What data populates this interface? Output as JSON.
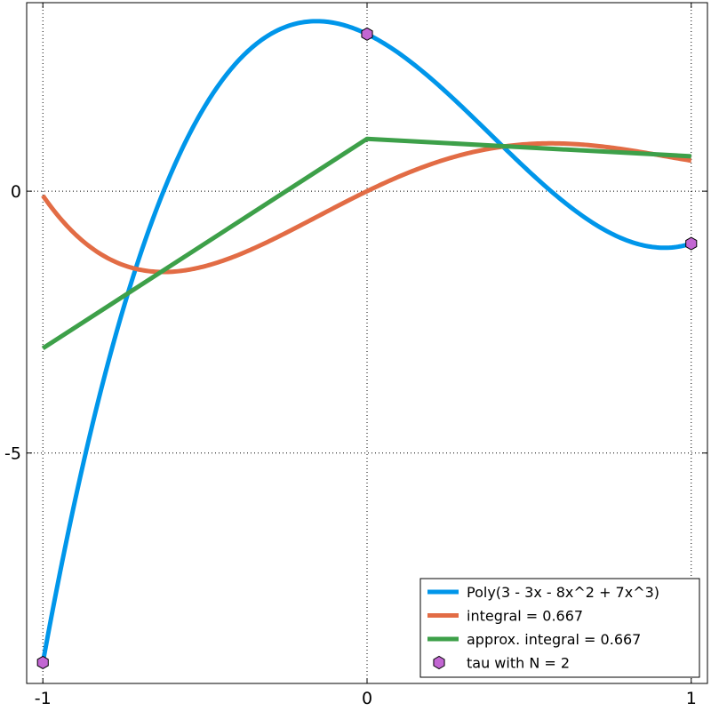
{
  "chart_data": {
    "type": "line",
    "title": "",
    "xlabel": "",
    "ylabel": "",
    "xlim": [
      -1.05,
      1.05
    ],
    "ylim": [
      -9.4,
      3.6
    ],
    "xticks": [
      -1,
      0,
      1
    ],
    "xtick_labels": [
      "-1",
      "0",
      "1"
    ],
    "yticks": [
      0,
      -5
    ],
    "ytick_labels": [
      "0",
      "-5"
    ],
    "grid": true,
    "legend": "bottom-right",
    "series": [
      {
        "name": "Poly(3 - 3x - 8x^2 + 7x^3)",
        "kind": "function",
        "coefficients": [
          3,
          -3,
          -8,
          7
        ],
        "color": "#0096ea"
      },
      {
        "name": "integral = 0.667",
        "kind": "function",
        "coefficients": [
          0,
          3,
          -1.5,
          -2.6667,
          1.75
        ],
        "color": "#e26c45"
      },
      {
        "name": "approx. integral = 0.667",
        "kind": "polyline",
        "x": [
          -1,
          0,
          1
        ],
        "y": [
          -3,
          1,
          0.667
        ],
        "color": "#3da049"
      },
      {
        "name": "tau with N = 2",
        "kind": "markers",
        "marker": "hexagon",
        "x": [
          -1,
          0,
          1
        ],
        "y": [
          -9,
          3,
          -1
        ],
        "color": "#c266d2"
      }
    ]
  }
}
